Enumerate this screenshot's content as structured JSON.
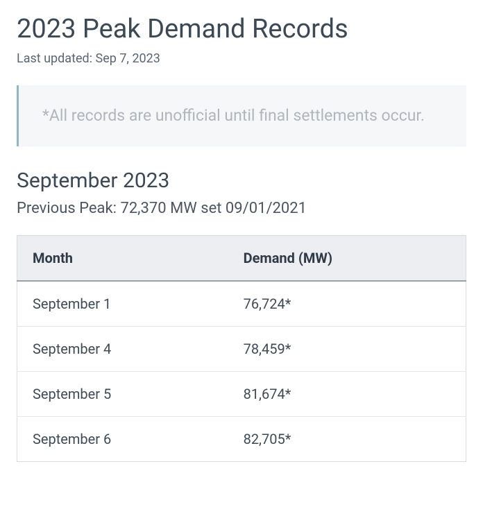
{
  "page": {
    "title": "2023 Peak Demand Records",
    "last_updated_label": "Last updated: Sep 7, 2023"
  },
  "notice": {
    "text": "*All records are unofficial until final settlements occur."
  },
  "section": {
    "title": "September 2023",
    "previous_peak": "Previous Peak: 72,370 MW set 09/01/2021"
  },
  "table": {
    "columns": {
      "month": "Month",
      "demand": "Demand (MW)"
    },
    "rows": [
      {
        "month": "September 1",
        "demand": "76,724*"
      },
      {
        "month": "September 4",
        "demand": "78,459*"
      },
      {
        "month": "September 5",
        "demand": "81,674*"
      },
      {
        "month": "September 6",
        "demand": "82,705*"
      }
    ]
  },
  "styling": {
    "background_color": "#ffffff",
    "title_color": "#3b4856",
    "body_text_color": "#4b5563",
    "notice_bg": "#f6f7f8",
    "notice_border": "#8eb7cc",
    "notice_text_color": "#b0b6bd",
    "table_header_bg": "#eceef1",
    "table_border_color": "#d7dbe0",
    "table_header_underline": "#9aa0a8",
    "row_border_color": "#e3e6ea",
    "title_fontsize": 38,
    "section_title_fontsize": 30,
    "body_fontsize": 20,
    "notice_fontsize": 23
  }
}
